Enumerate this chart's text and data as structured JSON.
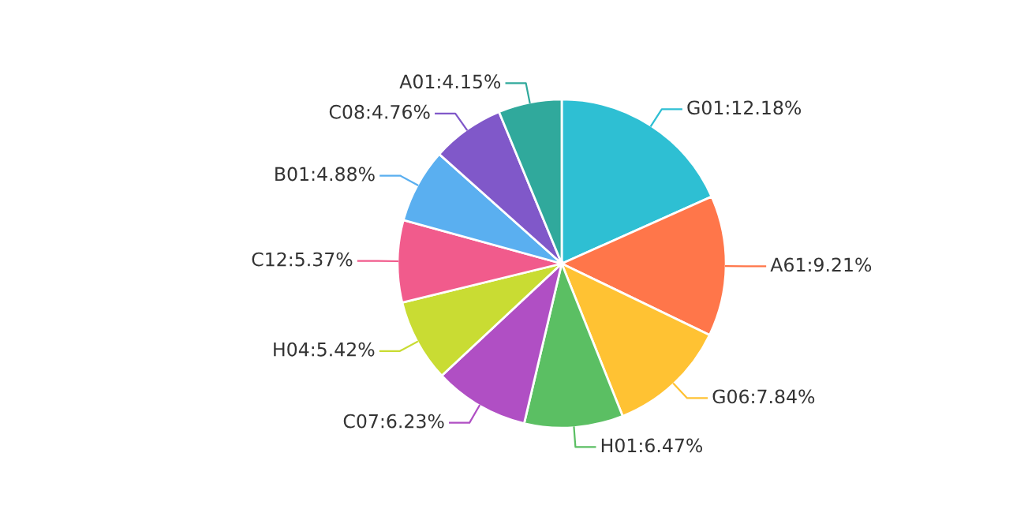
{
  "chart_data": {
    "type": "pie",
    "categories": [
      "G01",
      "A61",
      "G06",
      "H01",
      "C07",
      "H04",
      "C12",
      "B01",
      "C08",
      "A01"
    ],
    "values": [
      12.18,
      9.21,
      7.84,
      6.47,
      6.23,
      5.42,
      5.37,
      4.88,
      4.76,
      4.15
    ],
    "value_labels": [
      "12.18%",
      "9.21%",
      "7.84%",
      "6.47%",
      "6.23%",
      "5.42%",
      "5.37%",
      "4.88%",
      "4.76%",
      "4.15%"
    ],
    "colors": [
      "#2ebfd3",
      "#ff764a",
      "#ffc233",
      "#5bbf63",
      "#b04fc4",
      "#c9dc33",
      "#f15b8c",
      "#5aaff0",
      "#8058c9",
      "#30a99c"
    ]
  }
}
